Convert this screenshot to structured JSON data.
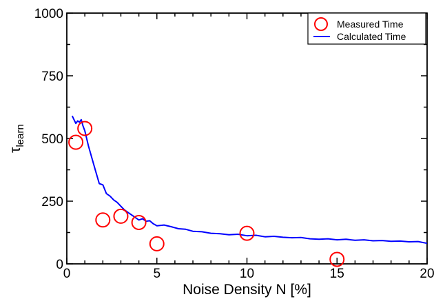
{
  "chart_data": {
    "type": "scatter",
    "xlabel": "Noise Density N [%]",
    "ylabel": {
      "main": "τ",
      "sub": "learn"
    },
    "xlim": [
      0,
      20
    ],
    "ylim": [
      0,
      1000
    ],
    "x_ticks": [
      0,
      5,
      10,
      15,
      20
    ],
    "y_ticks": [
      0,
      250,
      500,
      750,
      1000
    ],
    "x_tick_labels": [
      "0",
      "5",
      "10",
      "15",
      "20"
    ],
    "y_tick_labels": [
      "0",
      "250",
      "500",
      "750",
      "1000"
    ],
    "grid": false,
    "legend_position": "top-right",
    "series": [
      {
        "name": "Measured Time",
        "kind": "markers",
        "color": "#ff0000",
        "marker": "open-circle",
        "x": [
          0.5,
          1,
          2,
          3,
          4,
          5,
          10,
          15
        ],
        "y": [
          485,
          540,
          175,
          190,
          165,
          80,
          122,
          18
        ]
      },
      {
        "name": "Calculated Time",
        "kind": "line",
        "color": "#0000ff",
        "x": [
          0.3,
          0.5,
          0.6,
          0.7,
          0.8,
          0.9,
          1.0,
          1.2,
          1.4,
          1.6,
          1.8,
          2.0,
          2.2,
          2.4,
          2.6,
          2.8,
          3.0,
          3.2,
          3.4,
          3.6,
          3.8,
          4.0,
          4.2,
          4.4,
          4.6,
          4.8,
          5.0,
          5.4,
          5.8,
          6.2,
          6.6,
          7.0,
          7.5,
          8.0,
          8.5,
          9.0,
          9.5,
          10.0,
          10.5,
          11.0,
          11.5,
          12.0,
          12.5,
          13.0,
          13.5,
          14.0,
          14.5,
          15.0,
          15.5,
          16.0,
          16.5,
          17.0,
          17.5,
          18.0,
          18.5,
          19.0,
          19.5,
          20.0
        ],
        "y": [
          590,
          560,
          570,
          565,
          575,
          550,
          530,
          470,
          420,
          370,
          320,
          315,
          280,
          270,
          255,
          245,
          230,
          215,
          205,
          195,
          185,
          175,
          180,
          170,
          172,
          160,
          152,
          155,
          148,
          140,
          138,
          130,
          128,
          122,
          120,
          116,
          118,
          112,
          114,
          108,
          110,
          106,
          104,
          105,
          100,
          98,
          100,
          96,
          98,
          94,
          96,
          92,
          93,
          90,
          91,
          88,
          89,
          82
        ]
      }
    ]
  }
}
